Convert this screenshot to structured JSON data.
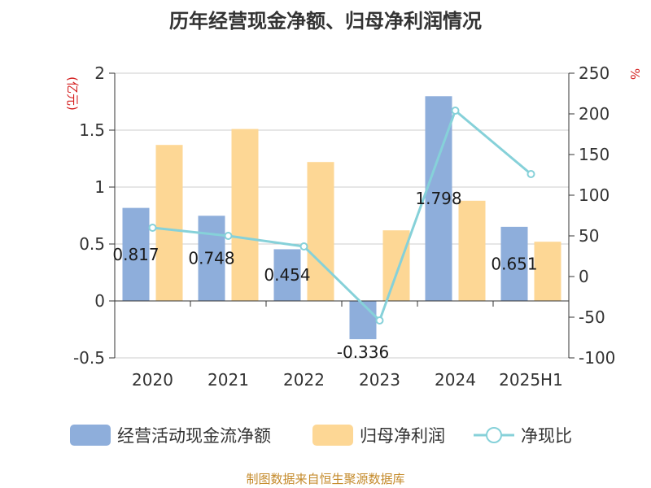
{
  "title": "历年经营现金净额、归母净利润情况",
  "source": "制图数据来自恒生聚源数据库",
  "colors": {
    "bar1": "#8eaedb",
    "bar2": "#fdd795",
    "line": "#86d1d9",
    "unit": "#d42020",
    "source": "#c48a2a"
  },
  "chart_data": {
    "type": "bar",
    "categories": [
      "2020",
      "2021",
      "2022",
      "2023",
      "2024",
      "2025H1"
    ],
    "series": [
      {
        "name": "经营活动现金流净额",
        "type": "bar",
        "axis": "left",
        "values": [
          0.817,
          0.748,
          0.454,
          -0.336,
          1.798,
          0.651
        ],
        "labels": [
          "0.817",
          "0.748",
          "0.454",
          "-0.336",
          "1.798",
          "0.651"
        ]
      },
      {
        "name": "归母净利润",
        "type": "bar",
        "axis": "left",
        "values": [
          1.37,
          1.51,
          1.22,
          0.62,
          0.88,
          0.52
        ]
      },
      {
        "name": "净现比",
        "type": "line",
        "axis": "right",
        "values": [
          60,
          50,
          37,
          -54,
          204,
          126
        ]
      }
    ],
    "left_axis": {
      "unit": "(亿元)",
      "ylim": [
        -0.5,
        2
      ],
      "ticks": [
        "2",
        "1.5",
        "1",
        "0.5",
        "0",
        "-0.5"
      ],
      "tick_values": [
        2,
        1.5,
        1,
        0.5,
        0,
        -0.5
      ]
    },
    "right_axis": {
      "unit": "%",
      "ylim": [
        -100,
        250
      ],
      "ticks": [
        "250",
        "200",
        "150",
        "100",
        "50",
        "0",
        "-50",
        "-100"
      ],
      "tick_values": [
        250,
        200,
        150,
        100,
        50,
        0,
        -50,
        -100
      ]
    },
    "grid": true,
    "legend_position": "bottom"
  }
}
